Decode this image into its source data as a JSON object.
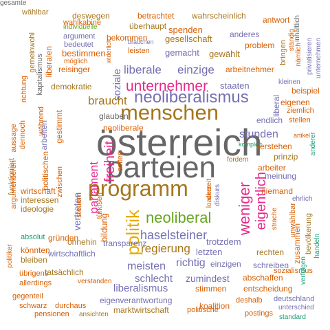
{
  "palette": {
    "orange": "#d95f02",
    "purple": "#7570b3",
    "magenta": "#e7298a",
    "green": "#66a61e",
    "gold": "#e6ab02",
    "brown": "#a6761d",
    "gray": "#666666",
    "teal": "#1b9e77"
  },
  "words": [
    "österreich",
    "parteien",
    "programm",
    "menschen",
    "neoliberal",
    "neoliberalismus",
    "politik",
    "unternehmer",
    "weniger",
    "eigentlich",
    "freiheit",
    "parlament",
    "braucht",
    "haselsteiner",
    "regierung",
    "liberale",
    "einzige",
    "soziale",
    "vertreten",
    "bildung",
    "stunden",
    "meisten",
    "richtig",
    "schlecht",
    "zumindest",
    "liberalismus",
    "letzten",
    "trotzdem",
    "gesellschaft",
    "gemacht",
    "gewählt",
    "spenden",
    "problem",
    "bekommen",
    "überhaupt",
    "leisten",
    "reisinger",
    "demokratie",
    "staaten",
    "arbeitnehmer",
    "endlich",
    "prinzip",
    "verstehen",
    "arbeiter",
    "niemand",
    "meinung",
    "glauben",
    "gründen",
    "ohnehin",
    "transparenz",
    "wirtschaftlich",
    "tatsächlich",
    "eigenverantwortung",
    "marktwirtschaft",
    "koalition",
    "stimmen",
    "entscheidung",
    "abschaffen",
    "schreiben",
    "rechten",
    "einzigen",
    "wirtschaft",
    "interessen",
    "ideologie",
    "könnten",
    "bleiben",
    "allerdings",
    "übrigens",
    "gegenteil",
    "schwarz",
    "durchaus",
    "pensionen",
    "ansichten",
    "politische",
    "deshalb",
    "deutschland",
    "postings",
    "unterschied",
    "standard",
    "bevölkerung",
    "zusammen",
    "unwählbar",
    "strache",
    "sozialismus",
    "handeln",
    "verfolgen",
    "ehrlich",
    "derzeit",
    "diskurs",
    "loacker",
    "fordern",
    "komplett",
    "artikel",
    "anderer",
    "stellen",
    "ziemlich",
    "eigenen",
    "beispiel",
    "kleinen",
    "liberal",
    "antwort",
    "inhaltlich",
    "ständig",
    "bringen",
    "nämlich",
    "privatisieren",
    "unternehmen",
    "anderes",
    "wahrscheinlich",
    "betrachtet",
    "deswegen",
    "individuelle",
    "wählbar",
    "wahlkabine",
    "argument",
    "bedeutet",
    "möglich",
    "brauchen",
    "widerlich",
    "bestimmen",
    "liberalen",
    "kapitalismus",
    "gemeinwohl",
    "richtung",
    "aussage",
    "dennoch",
    "während",
    "funktioniert",
    "argumentieren",
    "arbeiten",
    "politischen",
    "zwischen",
    "solten",
    "türkisen",
    "steuern",
    "absolut",
    "politiker",
    "verstanden",
    "gestimmt",
    "neoliberale",
    "gesamte"
  ]
}
